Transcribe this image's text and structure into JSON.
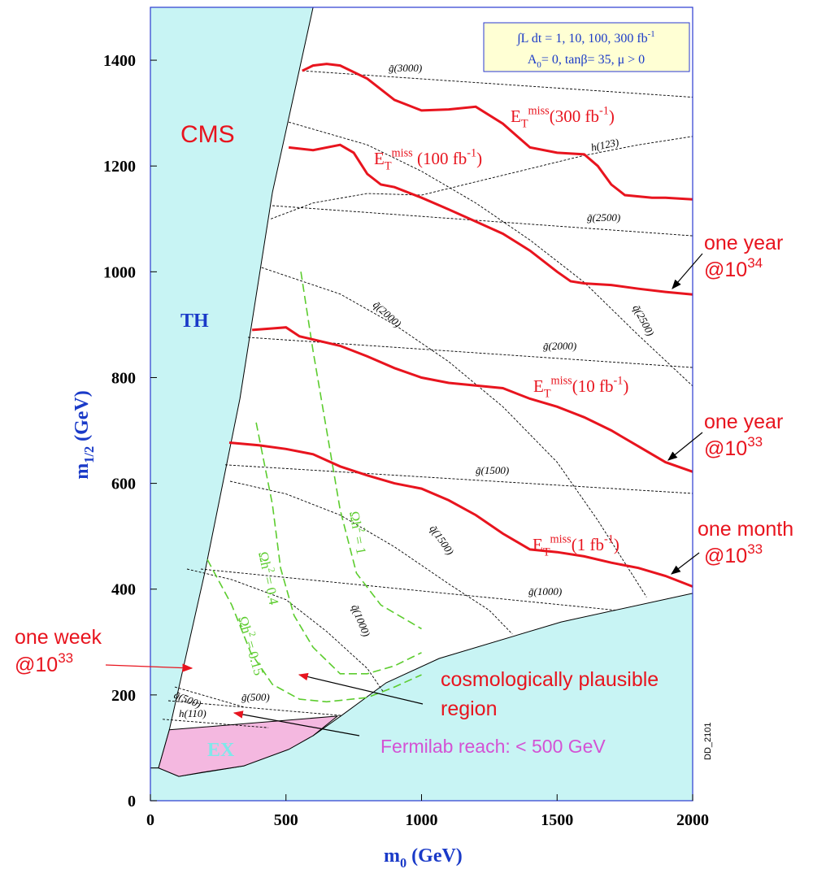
{
  "chart_data": {
    "type": "line",
    "xlim": [
      0,
      2000
    ],
    "ylim": [
      0,
      1500
    ],
    "xticks": [
      0,
      500,
      1000,
      1500,
      2000
    ],
    "yticks": [
      0,
      200,
      400,
      600,
      800,
      1000,
      1200,
      1400
    ],
    "x_label_parts": [
      {
        "text": "m"
      },
      {
        "text": "0",
        "script": "sub"
      },
      {
        "text": "  (GeV)"
      }
    ],
    "y_label_parts": [
      {
        "text": "m"
      },
      {
        "text": "1/2",
        "script": "sub"
      },
      {
        "text": " (GeV)"
      }
    ],
    "info_box": [
      [
        {
          "text": "∫L dt = 1, 10, 100, 300 fb"
        },
        {
          "text": "-1",
          "script": "sup"
        }
      ],
      [
        {
          "text": "A"
        },
        {
          "text": "0",
          "script": "sub"
        },
        {
          "text": "= 0, tanβ= 35, μ > 0"
        }
      ]
    ],
    "regions": [
      {
        "name": "TH",
        "color": "#c8f4f4",
        "label_color": "#1a3ac8",
        "x": [
          0,
          600,
          450,
          330,
          200,
          70,
          30,
          0
        ],
        "values": [
          1500,
          1500,
          1150,
          760,
          430,
          134,
          62,
          62
        ]
      },
      {
        "color": "#c8f4f4",
        "x": [
          30,
          105,
          345,
          600,
          705,
          870,
          1065,
          1515,
          2000,
          2000,
          0,
          0
        ],
        "values": [
          62,
          46,
          66,
          123,
          161,
          223,
          269,
          338,
          392,
          0,
          0,
          62
        ]
      },
      {
        "name": "EX",
        "color": "#f4b8e0",
        "label_color": "#7fe8ea",
        "x": [
          70,
          690,
          600,
          510,
          345,
          195,
          105,
          30
        ],
        "values": [
          134,
          160,
          123,
          97,
          66,
          54,
          46,
          62
        ]
      }
    ],
    "series": [
      {
        "label_parts": [
          {
            "text": "E"
          },
          {
            "text": "T",
            "script": "sub"
          },
          {
            "text": "miss",
            "script": "sup"
          },
          {
            "text": "(300 fb"
          },
          {
            "text": "-1",
            "script": "sup"
          },
          {
            "text": ")"
          }
        ],
        "color": "#e8141e",
        "x": [
          560,
          600,
          650,
          700,
          800,
          900,
          1000,
          1100,
          1200,
          1300,
          1400,
          1500,
          1600,
          1650,
          1700,
          1750,
          1850,
          1900,
          2000
        ],
        "values": [
          1380,
          1390,
          1393,
          1390,
          1365,
          1325,
          1305,
          1307,
          1312,
          1280,
          1235,
          1225,
          1222,
          1200,
          1165,
          1145,
          1140,
          1140,
          1137
        ]
      },
      {
        "label_parts": [
          {
            "text": "E"
          },
          {
            "text": "T",
            "script": "sub"
          },
          {
            "text": "miss",
            "script": "sup"
          },
          {
            "text": " (100 fb"
          },
          {
            "text": "-1",
            "script": "sup"
          },
          {
            "text": ")"
          }
        ],
        "color": "#e8141e",
        "x": [
          510,
          600,
          700,
          750,
          800,
          850,
          900,
          1000,
          1100,
          1200,
          1300,
          1400,
          1500,
          1550,
          1600,
          1700,
          1800,
          1900,
          2000
        ],
        "values": [
          1235,
          1230,
          1240,
          1225,
          1185,
          1165,
          1160,
          1140,
          1118,
          1095,
          1072,
          1040,
          1000,
          982,
          978,
          975,
          968,
          962,
          957
        ]
      },
      {
        "label_parts": [
          {
            "text": "E"
          },
          {
            "text": "T",
            "script": "sub"
          },
          {
            "text": "miss",
            "script": "sup"
          },
          {
            "text": "(10 fb"
          },
          {
            "text": "-1",
            "script": "sup"
          },
          {
            "text": ")"
          }
        ],
        "color": "#e8141e",
        "x": [
          375,
          450,
          500,
          550,
          700,
          800,
          900,
          1000,
          1100,
          1200,
          1300,
          1400,
          1500,
          1600,
          1700,
          1800,
          1900,
          2000
        ],
        "values": [
          890,
          893,
          895,
          878,
          860,
          840,
          818,
          800,
          790,
          785,
          780,
          760,
          745,
          725,
          700,
          670,
          640,
          622
        ]
      },
      {
        "label_parts": [
          {
            "text": "E"
          },
          {
            "text": "T",
            "script": "sub"
          },
          {
            "text": "miss",
            "script": "sup"
          },
          {
            "text": "(1 fb"
          },
          {
            "text": "-1",
            "script": "sup"
          },
          {
            "text": ")"
          }
        ],
        "color": "#e8141e",
        "x": [
          291,
          400,
          500,
          600,
          700,
          800,
          900,
          1000,
          1100,
          1200,
          1300,
          1400,
          1500,
          1600,
          1700,
          1800,
          1900,
          2000
        ],
        "values": [
          677,
          672,
          665,
          655,
          632,
          615,
          600,
          590,
          568,
          540,
          505,
          475,
          470,
          462,
          450,
          440,
          425,
          405
        ]
      }
    ],
    "contours": [
      {
        "label_parts": [
          {
            "text": "g̃(3000)"
          }
        ],
        "x": [
          560,
          2000
        ],
        "values": [
          1380,
          1330
        ]
      },
      {
        "label_parts": [
          {
            "text": "q̃(2500)"
          }
        ],
        "x": [
          510,
          800,
          1000,
          1200,
          1400,
          1600,
          1800,
          2000
        ],
        "values": [
          1283,
          1240,
          1190,
          1130,
          1060,
          980,
          880,
          784
        ]
      },
      {
        "label_parts": [
          {
            "text": "h(123)"
          }
        ],
        "x": [
          444,
          600,
          800,
          1000,
          1200,
          1400,
          1600,
          1800,
          2000
        ],
        "values": [
          1100,
          1130,
          1148,
          1145,
          1170,
          1195,
          1220,
          1240,
          1256
        ]
      },
      {
        "label_parts": [
          {
            "text": "g̃(2500)"
          }
        ],
        "x": [
          450,
          2000
        ],
        "values": [
          1125,
          1068
        ]
      },
      {
        "label_parts": [
          {
            "text": "q̃(2000)"
          }
        ],
        "x": [
          410,
          700,
          900,
          1100,
          1300,
          1500,
          1650,
          1830
        ],
        "values": [
          1008,
          958,
          900,
          830,
          745,
          640,
          530,
          385
        ]
      },
      {
        "label_parts": [
          {
            "text": "g̃(2000)"
          }
        ],
        "x": [
          360,
          2000
        ],
        "values": [
          876,
          819
        ]
      },
      {
        "label_parts": [
          {
            "text": "q̃(1500)"
          }
        ],
        "x": [
          294,
          500,
          700,
          900,
          1100,
          1250,
          1335
        ],
        "values": [
          604,
          580,
          540,
          480,
          410,
          360,
          315
        ]
      },
      {
        "label_parts": [
          {
            "text": "g̃(1500)"
          }
        ],
        "x": [
          276,
          2000
        ],
        "values": [
          635,
          581
        ]
      },
      {
        "label_parts": [
          {
            "text": "g̃(1000)"
          }
        ],
        "x": [
          186,
          1720
        ],
        "values": [
          438,
          360
        ]
      },
      {
        "label_parts": [
          {
            "text": "q̃(1000)"
          }
        ],
        "x": [
          135,
          300,
          500,
          650,
          800,
          860
        ],
        "values": [
          438,
          418,
          380,
          320,
          250,
          205
        ]
      },
      {
        "label_parts": [
          {
            "text": "g̃(500)"
          }
        ],
        "x": [
          66,
          705
        ],
        "values": [
          189,
          161
        ]
      },
      {
        "label_parts": [
          {
            "text": "q̃(500)"
          }
        ],
        "x": [
          90,
          345
        ],
        "values": [
          215,
          177
        ]
      },
      {
        "label_parts": [
          {
            "text": "h(110)"
          }
        ],
        "x": [
          45,
          435
        ],
        "values": [
          154,
          138
        ]
      }
    ],
    "relic": [
      {
        "label_parts": [
          {
            "text": "Ωh"
          },
          {
            "text": "2",
            "script": "sup"
          },
          {
            "text": " = 1"
          }
        ],
        "color": "#5ccc2e",
        "x": [
          555,
          600,
          650,
          700,
          760,
          850,
          1000
        ],
        "values": [
          1000,
          850,
          700,
          550,
          430,
          370,
          325
        ]
      },
      {
        "label_parts": [
          {
            "text": "Ωh"
          },
          {
            "text": "2",
            "script": "sup"
          },
          {
            "text": " = 0.4"
          }
        ],
        "color": "#5ccc2e",
        "x": [
          390,
          450,
          480,
          530,
          600,
          700,
          800,
          900,
          1000
        ],
        "values": [
          715,
          560,
          440,
          350,
          290,
          240,
          240,
          255,
          280
        ]
      },
      {
        "label_parts": [
          {
            "text": "Ωh"
          },
          {
            "text": "2",
            "script": "sup"
          },
          {
            "text": " = 0.15"
          }
        ],
        "color": "#5ccc2e",
        "x": [
          210,
          300,
          370,
          450,
          550,
          650,
          800,
          900,
          1000
        ],
        "values": [
          456,
          370,
          280,
          220,
          192,
          187,
          195,
          215,
          238
        ]
      }
    ],
    "annotations": [
      {
        "color": "#e8141e",
        "parts": [
          {
            "text": "CMS"
          }
        ]
      },
      {
        "color": "#e8141e",
        "parts": [
          {
            "text": "one year"
          }
        ]
      },
      {
        "color": "#e8141e",
        "parts": [
          {
            "text": "@10"
          },
          {
            "text": "34",
            "script": "sup"
          }
        ]
      },
      {
        "color": "#e8141e",
        "parts": [
          {
            "text": "one year"
          }
        ]
      },
      {
        "color": "#e8141e",
        "parts": [
          {
            "text": "@10"
          },
          {
            "text": "33",
            "script": "sup"
          }
        ]
      },
      {
        "color": "#e8141e",
        "parts": [
          {
            "text": "one month"
          }
        ]
      },
      {
        "color": "#e8141e",
        "parts": [
          {
            "text": "@10"
          },
          {
            "text": "33",
            "script": "sup"
          }
        ]
      },
      {
        "color": "#e8141e",
        "parts": [
          {
            "text": "one week"
          }
        ]
      },
      {
        "color": "#e8141e",
        "parts": [
          {
            "text": "@10"
          },
          {
            "text": "33",
            "script": "sup"
          }
        ]
      },
      {
        "color": "#e8141e",
        "parts": [
          {
            "text": "cosmologically plausible"
          }
        ]
      },
      {
        "color": "#e8141e",
        "parts": [
          {
            "text": "region"
          }
        ]
      },
      {
        "color": "#d452d4",
        "parts": [
          {
            "text": "Fermilab reach: < 500 GeV"
          }
        ]
      },
      {
        "color": "#000000",
        "parts": [
          {
            "text": "DD_2101"
          }
        ]
      }
    ]
  }
}
